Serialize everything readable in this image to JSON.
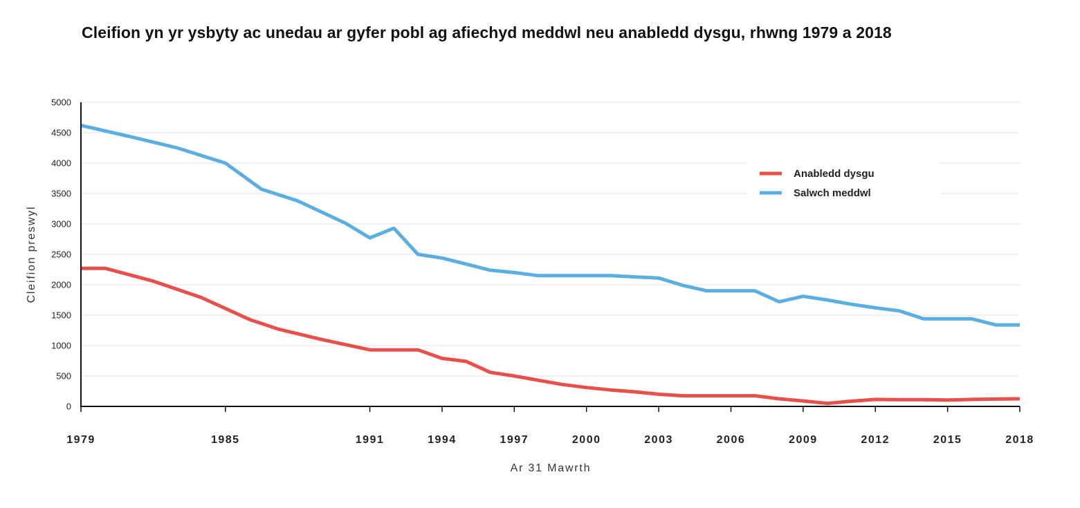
{
  "chart_data": {
    "type": "line",
    "title": "Cleifion yn yr ysbyty ac unedau ar gyfer pobl ag afiechyd meddwl neu anabledd dysgu, rhwng 1979 a 2018",
    "xlabel": "Ar 31 Mawrth",
    "ylabel": "Cleifion preswyl",
    "ylim": [
      0,
      5000
    ],
    "xlim": [
      1979,
      2018
    ],
    "yticks": [
      0,
      500,
      1000,
      1500,
      2000,
      2500,
      3000,
      3500,
      4000,
      4500,
      5000
    ],
    "xticks": [
      1979,
      1985,
      1991,
      1994,
      1997,
      2000,
      2003,
      2006,
      2009,
      2012,
      2015,
      2018
    ],
    "grid": true,
    "legend_position": "upper-right",
    "series": [
      {
        "name": "Anabledd dysgu",
        "color": "#e8504b",
        "x": [
          1979,
          1980,
          1982,
          1984,
          1986,
          1987.2,
          1989,
          1991,
          1993,
          1994,
          1995,
          1996,
          1997,
          1998,
          1999,
          2000,
          2001,
          2002,
          2003,
          2004,
          2005,
          2006,
          2007,
          2008,
          2009,
          2010,
          2011,
          2012,
          2013,
          2014,
          2015,
          2016,
          2017,
          2018
        ],
        "values": [
          2270,
          2270,
          2060,
          1790,
          1430,
          1270,
          1100,
          930,
          930,
          790,
          740,
          560,
          500,
          430,
          360,
          310,
          270,
          240,
          200,
          175,
          175,
          175,
          175,
          125,
          90,
          50,
          85,
          115,
          110,
          110,
          105,
          115,
          120,
          125
        ]
      },
      {
        "name": "Salwch meddwl",
        "color": "#5aaee0",
        "x": [
          1979,
          1981,
          1983,
          1985,
          1986.5,
          1988,
          1990,
          1991,
          1992,
          1993,
          1994,
          1995,
          1996,
          1997,
          1998,
          1999,
          2000,
          2001,
          2002,
          2003,
          2004,
          2005,
          2006,
          2007,
          2008,
          2009,
          2010,
          2011,
          2012,
          2013,
          2014,
          2015,
          2016,
          2017,
          2018
        ],
        "values": [
          4620,
          4440,
          4250,
          4000,
          3570,
          3380,
          3010,
          2770,
          2930,
          2500,
          2440,
          2340,
          2240,
          2200,
          2150,
          2150,
          2150,
          2150,
          2130,
          2110,
          1990,
          1900,
          1900,
          1900,
          1720,
          1810,
          1750,
          1680,
          1620,
          1570,
          1440,
          1440,
          1440,
          1340,
          1340
        ]
      }
    ]
  }
}
